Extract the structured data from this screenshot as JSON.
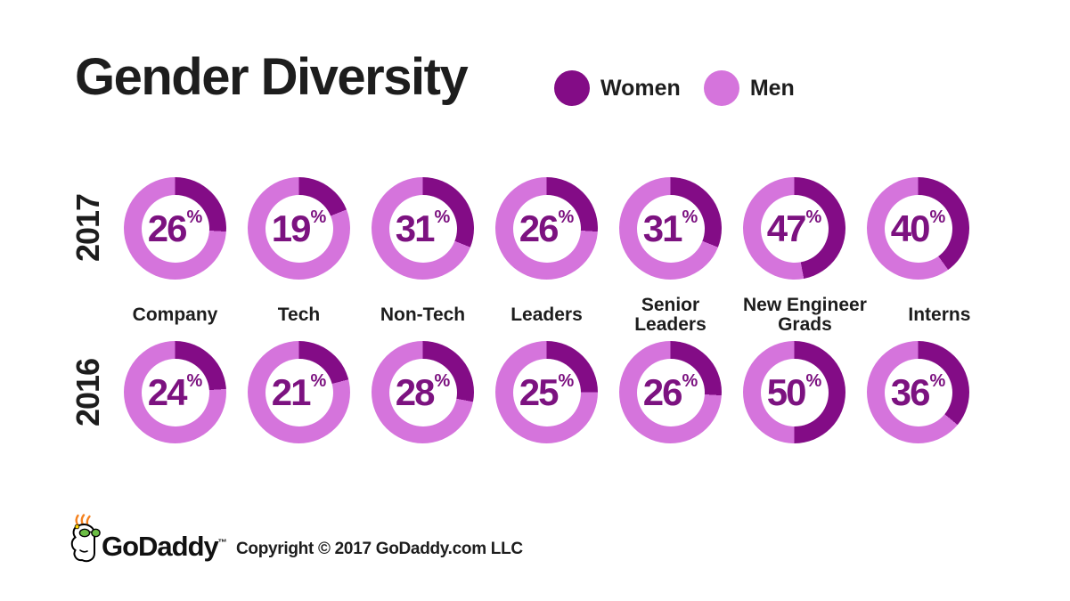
{
  "title": "Gender Diversity",
  "colors": {
    "women": "#830C86",
    "men": "#D574DC",
    "number": "#7C1280",
    "text": "#1D1D1D"
  },
  "legend": [
    {
      "label": "Women",
      "color": "#830C86"
    },
    {
      "label": "Men",
      "color": "#D574DC"
    }
  ],
  "chart_data": {
    "type": "donut-grid",
    "title": "Gender Diversity",
    "unit": "%",
    "categories": [
      "Company",
      "Tech",
      "Non-Tech",
      "Leaders",
      "Senior Leaders",
      "New Engineer Grads",
      "Interns"
    ],
    "category_lines": [
      [
        "Company"
      ],
      [
        "Tech"
      ],
      [
        "Non-Tech"
      ],
      [
        "Leaders"
      ],
      [
        "Senior",
        "Leaders"
      ],
      [
        "New Engineer",
        "Grads"
      ],
      [
        "Interns"
      ]
    ],
    "series": [
      {
        "name": "2017",
        "values": [
          26,
          19,
          31,
          26,
          31,
          47,
          40
        ]
      },
      {
        "name": "2016",
        "values": [
          24,
          21,
          28,
          25,
          26,
          50,
          36
        ]
      }
    ],
    "legend_entries": [
      "Women",
      "Men"
    ],
    "value_meaning": "percent women"
  },
  "footer": {
    "logo_text": "GoDaddy",
    "trademark": "™",
    "copyright": "Copyright © 2017 GoDaddy.com LLC"
  }
}
